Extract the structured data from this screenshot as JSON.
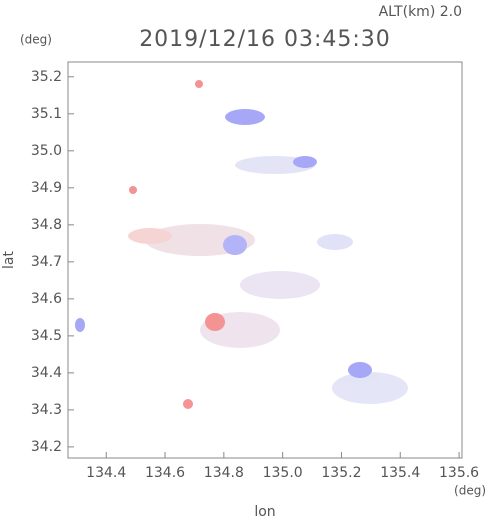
{
  "chart_data": {
    "type": "map",
    "title": "2019/12/16 03:45:30",
    "subtitle": "ALT(km) 2.0",
    "x_label": "lon",
    "x_unit": "(deg)",
    "y_label": "lat",
    "y_unit": "(deg)",
    "xlim": [
      134.27,
      135.61
    ],
    "ylim": [
      34.17,
      35.24
    ],
    "xticks": [
      134.4,
      134.6,
      134.8,
      {
        "value": 135,
        "label": "135.0"
      },
      135.2,
      135.4,
      135.6
    ],
    "yticks": [
      34.2,
      34.3,
      34.4,
      34.5,
      34.6,
      34.7,
      34.8,
      34.9,
      {
        "value": 35,
        "label": "35.0"
      },
      35.1,
      35.2
    ]
  }
}
